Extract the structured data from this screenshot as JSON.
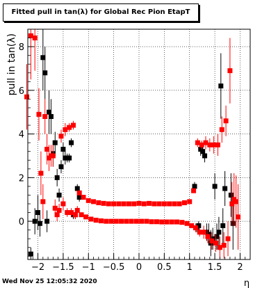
{
  "title": "Fitted pull in tan(λ) for Global Rec Pion EtapT",
  "timestamp": "Wed Nov 25 12:05:32 2020",
  "chart_data": {
    "type": "scatter",
    "xlabel": "η",
    "ylabel": "pull in tan(λ)",
    "xlim": [
      -2.2,
      2.2
    ],
    "ylim": [
      -1.75,
      8.8
    ],
    "xticks": [
      -2,
      -1.5,
      -1,
      -0.5,
      0,
      0.5,
      1,
      1.5,
      2
    ],
    "xtick_labels": [
      "−2",
      "−1.5",
      "−1",
      "−0.5",
      "0",
      "0.5",
      "1",
      "1.5",
      "2"
    ],
    "yticks": [
      0,
      2,
      4,
      6,
      8
    ],
    "ytick_labels": [
      "0",
      "2",
      "4",
      "6",
      "8"
    ],
    "grid": true,
    "series": [
      {
        "color": "#000000",
        "points": [
          [
            -2.14,
            -1.5,
            0.3
          ],
          [
            -2.06,
            0.0,
            0.6
          ],
          [
            -2.0,
            0.4,
            0.8
          ],
          [
            -1.96,
            -0.1,
            0.6
          ],
          [
            -1.9,
            7.5,
            1.5
          ],
          [
            -1.86,
            6.8,
            1.2
          ],
          [
            -1.82,
            0.0,
            0.5
          ],
          [
            -1.78,
            5.0,
            1.0
          ],
          [
            -1.74,
            4.8,
            0.8
          ],
          [
            -1.7,
            3.1,
            0.6
          ],
          [
            -1.66,
            3.6,
            0.5
          ],
          [
            -1.62,
            2.0,
            0.4
          ],
          [
            -1.58,
            1.2,
            0.3
          ],
          [
            -1.54,
            2.5,
            0.3
          ],
          [
            -1.5,
            3.3,
            0.3
          ],
          [
            -1.46,
            2.9,
            0.3
          ],
          [
            -1.42,
            2.9,
            0.2
          ],
          [
            -1.38,
            2.9,
            0.2
          ],
          [
            -1.34,
            3.6,
            0.2
          ],
          [
            -1.3,
            0.3,
            0.2
          ],
          [
            -1.26,
            0.3,
            0.2
          ],
          [
            -1.22,
            1.5,
            0.2
          ],
          [
            -1.18,
            1.1,
            0.2
          ],
          [
            1.1,
            1.6,
            0.2
          ],
          [
            1.14,
            -0.3,
            0.2
          ],
          [
            1.18,
            -0.2,
            0.2
          ],
          [
            1.22,
            3.3,
            0.3
          ],
          [
            1.26,
            3.2,
            0.3
          ],
          [
            1.3,
            3.0,
            0.3
          ],
          [
            1.34,
            -0.5,
            0.4
          ],
          [
            1.38,
            -0.6,
            0.5
          ],
          [
            1.42,
            -1.0,
            0.6
          ],
          [
            1.46,
            -0.8,
            0.5
          ],
          [
            1.5,
            1.6,
            0.6
          ],
          [
            1.54,
            -0.7,
            0.6
          ],
          [
            1.58,
            -0.5,
            0.7
          ],
          [
            1.62,
            6.2,
            1.5
          ],
          [
            1.66,
            -0.2,
            0.8
          ],
          [
            1.7,
            1.5,
            0.8
          ],
          [
            1.82,
            1.2,
            1.0
          ],
          [
            1.86,
            -0.1,
            1.2
          ]
        ]
      },
      {
        "color": "#ff0000",
        "points": [
          [
            -2.22,
            5.7,
            1.5
          ],
          [
            -2.14,
            8.5,
            2.0
          ],
          [
            -2.06,
            8.4,
            1.5
          ],
          [
            -1.98,
            4.9,
            1.2
          ],
          [
            -1.94,
            2.2,
            1.0
          ],
          [
            -1.9,
            0.9,
            0.8
          ],
          [
            -1.86,
            4.8,
            0.8
          ],
          [
            -1.82,
            3.3,
            0.7
          ],
          [
            -1.78,
            2.9,
            0.6
          ],
          [
            -1.74,
            3.0,
            0.5
          ],
          [
            -1.7,
            3.0,
            0.5
          ],
          [
            -1.66,
            0.6,
            0.4
          ],
          [
            -1.62,
            0.3,
            0.3
          ],
          [
            -1.58,
            0.5,
            0.3
          ],
          [
            -1.54,
            3.9,
            0.3
          ],
          [
            -1.5,
            0.8,
            0.3
          ],
          [
            -1.46,
            4.2,
            0.3
          ],
          [
            -1.42,
            0.4,
            0.2
          ],
          [
            -1.38,
            4.3,
            0.2
          ],
          [
            -1.34,
            0.4,
            0.2
          ],
          [
            -1.3,
            4.4,
            0.2
          ],
          [
            -1.26,
            0.3,
            0.2
          ],
          [
            -1.22,
            0.5,
            0.2
          ],
          [
            -1.18,
            1.3,
            0.1
          ],
          [
            -1.14,
            0.3,
            0.1
          ],
          [
            -1.1,
            1.1,
            0.1
          ],
          [
            -1.05,
            0.2,
            0.1
          ],
          [
            -1.0,
            0.95,
            0.1
          ],
          [
            -0.95,
            0.1,
            0.1
          ],
          [
            -0.9,
            0.9,
            0.1
          ],
          [
            -0.85,
            0.05,
            0.1
          ],
          [
            -0.8,
            0.85,
            0.1
          ],
          [
            -0.75,
            0.02,
            0.1
          ],
          [
            -0.7,
            0.82,
            0.1
          ],
          [
            -0.65,
            0.0,
            0.1
          ],
          [
            -0.6,
            0.8,
            0.1
          ],
          [
            -0.55,
            0.0,
            0.1
          ],
          [
            -0.5,
            0.8,
            0.1
          ],
          [
            -0.45,
            0.0,
            0.1
          ],
          [
            -0.4,
            0.8,
            0.1
          ],
          [
            -0.35,
            0.0,
            0.1
          ],
          [
            -0.3,
            0.8,
            0.1
          ],
          [
            -0.25,
            0.0,
            0.1
          ],
          [
            -0.2,
            0.8,
            0.1
          ],
          [
            -0.15,
            0.0,
            0.1
          ],
          [
            -0.1,
            0.8,
            0.1
          ],
          [
            -0.05,
            0.0,
            0.1
          ],
          [
            0.0,
            0.82,
            0.1
          ],
          [
            0.05,
            0.0,
            0.1
          ],
          [
            0.1,
            0.8,
            0.1
          ],
          [
            0.15,
            0.0,
            0.1
          ],
          [
            0.2,
            0.82,
            0.1
          ],
          [
            0.25,
            -0.02,
            0.1
          ],
          [
            0.3,
            0.8,
            0.1
          ],
          [
            0.35,
            -0.02,
            0.1
          ],
          [
            0.4,
            0.8,
            0.1
          ],
          [
            0.45,
            -0.03,
            0.1
          ],
          [
            0.5,
            0.8,
            0.1
          ],
          [
            0.55,
            -0.03,
            0.1
          ],
          [
            0.6,
            0.8,
            0.1
          ],
          [
            0.65,
            -0.03,
            0.1
          ],
          [
            0.7,
            0.8,
            0.1
          ],
          [
            0.75,
            -0.03,
            0.1
          ],
          [
            0.8,
            0.8,
            0.1
          ],
          [
            0.85,
            -0.05,
            0.1
          ],
          [
            0.9,
            0.85,
            0.1
          ],
          [
            0.95,
            -0.1,
            0.1
          ],
          [
            1.0,
            0.9,
            0.1
          ],
          [
            1.04,
            -0.2,
            0.1
          ],
          [
            1.08,
            1.4,
            0.1
          ],
          [
            1.12,
            -0.3,
            0.2
          ],
          [
            1.16,
            3.6,
            0.2
          ],
          [
            1.2,
            -0.5,
            0.2
          ],
          [
            1.24,
            3.5,
            0.2
          ],
          [
            1.28,
            -0.5,
            0.3
          ],
          [
            1.32,
            3.6,
            0.3
          ],
          [
            1.36,
            -0.7,
            0.3
          ],
          [
            1.4,
            3.5,
            0.3
          ],
          [
            1.44,
            -0.9,
            0.4
          ],
          [
            1.48,
            3.5,
            0.4
          ],
          [
            1.52,
            -1.0,
            0.4
          ],
          [
            1.56,
            3.5,
            0.5
          ],
          [
            1.6,
            -1.2,
            0.5
          ],
          [
            1.64,
            4.2,
            0.6
          ],
          [
            1.68,
            -1.1,
            0.6
          ],
          [
            1.72,
            4.6,
            0.7
          ],
          [
            1.76,
            -0.8,
            0.8
          ],
          [
            1.8,
            6.9,
            1.5
          ],
          [
            1.84,
            0.8,
            1.0
          ],
          [
            1.88,
            1.0,
            1.2
          ],
          [
            1.92,
            0.9,
            1.2
          ],
          [
            1.96,
            0.2,
            1.5
          ]
        ]
      }
    ]
  }
}
